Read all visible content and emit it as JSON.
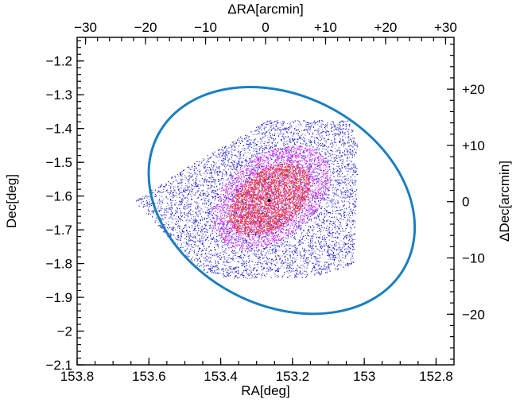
{
  "chart_data": {
    "type": "scatter",
    "axes": {
      "bottom": {
        "label": "RA[deg]",
        "range": [
          153.8,
          152.75
        ],
        "ticks": [
          153.8,
          153.6,
          153.4,
          153.2,
          153.0,
          152.8
        ],
        "tick_labels": [
          "153.8",
          "153.6",
          "153.4",
          "153.2",
          "153",
          "152.8"
        ]
      },
      "left": {
        "label": "Dec[deg]",
        "range": [
          -2.1,
          -1.13
        ],
        "ticks": [
          -2.1,
          -2.0,
          -1.9,
          -1.8,
          -1.7,
          -1.6,
          -1.5,
          -1.4,
          -1.3,
          -1.2
        ],
        "tick_labels": [
          "−2.1",
          "−2",
          "−1.9",
          "−1.8",
          "−1.7",
          "−1.6",
          "−1.5",
          "−1.4",
          "−1.3",
          "−1.2"
        ]
      },
      "top": {
        "label": "ΔRA[arcmin]",
        "range": [
          -31.4,
          31.4
        ],
        "ticks": [
          -30,
          -20,
          -10,
          0,
          10,
          20,
          30
        ],
        "tick_labels": [
          "−30",
          "−20",
          "−10",
          "0",
          "+10",
          "+20",
          "+30"
        ]
      },
      "right": {
        "label": "ΔDec[arcmin]",
        "range": [
          -29,
          29.2
        ],
        "ticks": [
          -20,
          -10,
          0,
          10,
          20
        ],
        "tick_labels": [
          "−20",
          "−10",
          "0",
          "+10",
          "+20"
        ]
      }
    },
    "center": {
      "ra": 153.265,
      "dec": -1.613
    },
    "regions": [
      {
        "name": "blue",
        "color": "#2a2ad8",
        "polygon_radec": [
          [
            153.14,
            -1.375
          ],
          [
            153.04,
            -1.375
          ],
          [
            153.02,
            -1.445
          ],
          [
            153.02,
            -1.545
          ],
          [
            153.03,
            -1.8
          ],
          [
            153.14,
            -1.84
          ],
          [
            153.38,
            -1.845
          ],
          [
            153.46,
            -1.82
          ],
          [
            153.64,
            -1.615
          ],
          [
            153.49,
            -1.51
          ],
          [
            153.34,
            -1.42
          ],
          [
            153.27,
            -1.375
          ]
        ]
      },
      {
        "name": "magenta",
        "color": "#ff33ff",
        "ellipse": {
          "ra": 153.26,
          "dec": -1.603,
          "a_deg": 0.185,
          "b_deg": 0.125,
          "angle_deg": -35
        }
      },
      {
        "name": "red",
        "color": "#ee3322",
        "ellipse": {
          "ra": 153.265,
          "dec": -1.61,
          "a_deg": 0.13,
          "b_deg": 0.085,
          "angle_deg": -35
        }
      }
    ],
    "outline_ellipse": {
      "color": "#1a7fc0",
      "ra": 153.23,
      "dec": -1.613,
      "a_deg": 0.39,
      "b_deg": 0.31,
      "angle_deg": -28
    },
    "center_point": {
      "ra": 153.265,
      "dec": -1.613,
      "color": "#000000"
    }
  }
}
